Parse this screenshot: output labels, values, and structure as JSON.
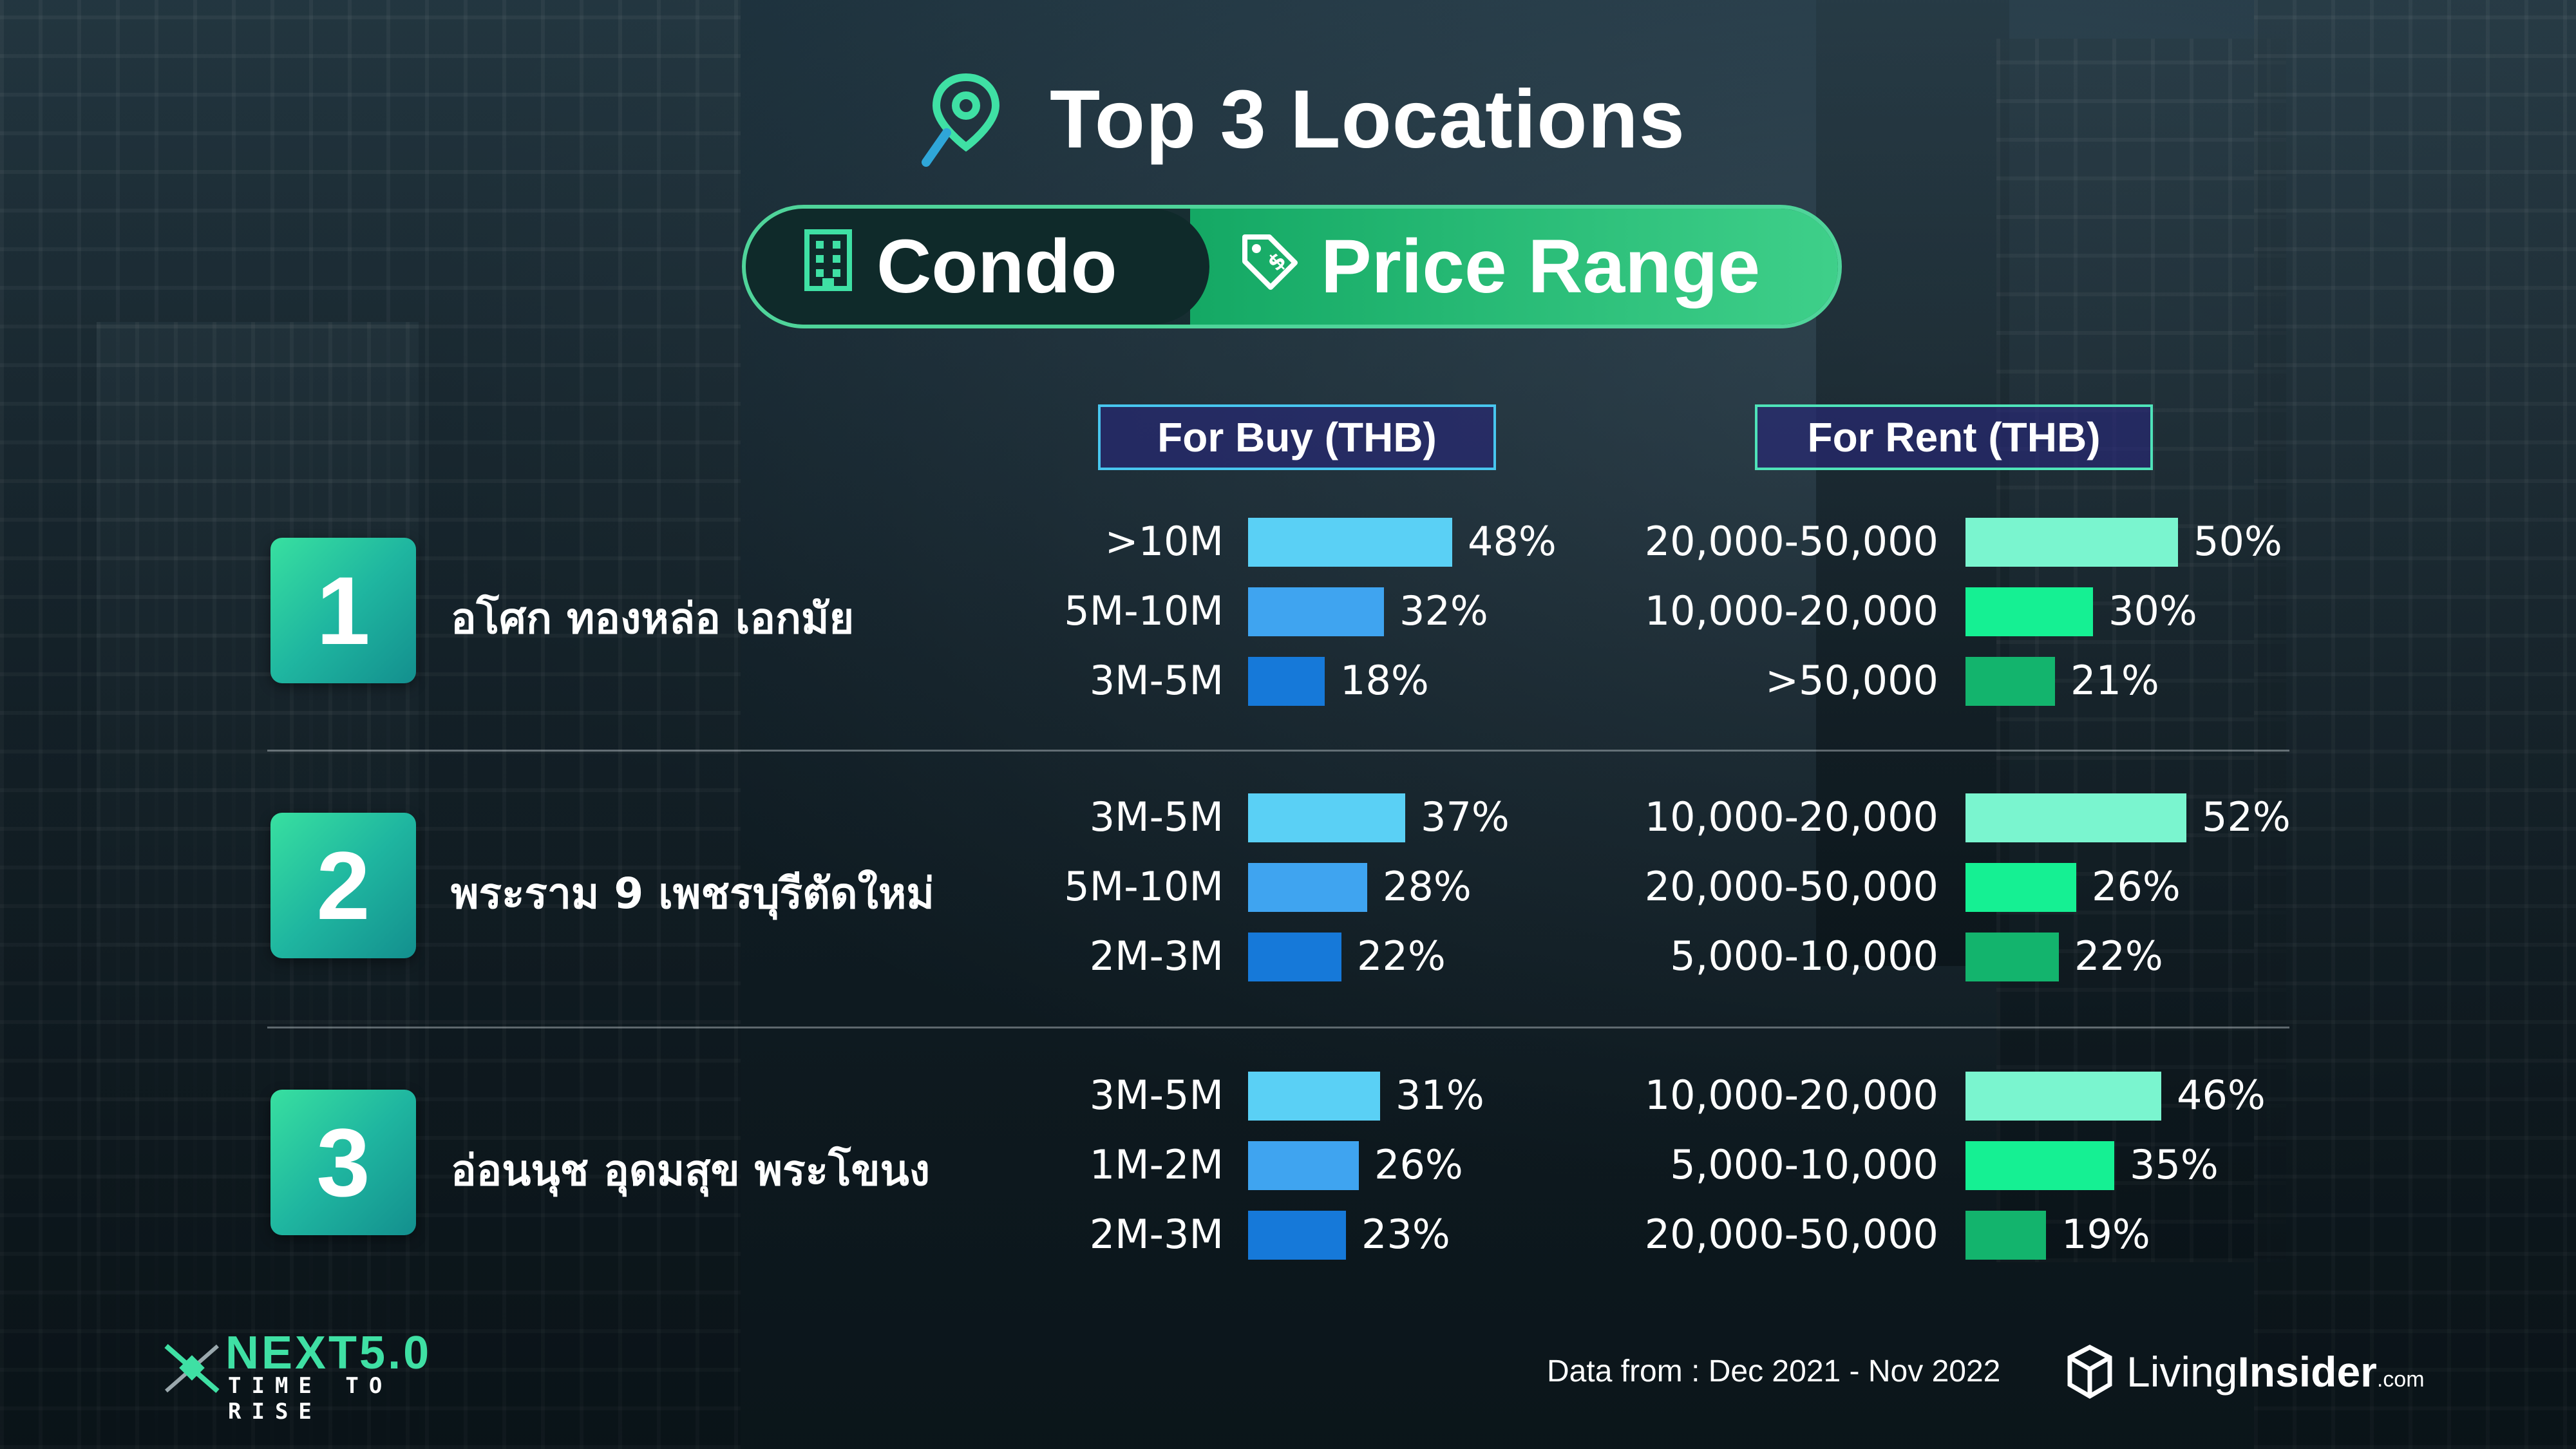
{
  "title": "Top 3 Locations",
  "pill": {
    "left_label": "Condo",
    "right_label": "Price Range",
    "left_icon": "building-icon",
    "right_icon": "price-tag-icon"
  },
  "columns": {
    "buy_header": "For Buy (THB)",
    "rent_header": "For Rent (THB)"
  },
  "colors": {
    "buy_bars": [
      "#5ad0f5",
      "#3fa4f0",
      "#1679d9"
    ],
    "rent_bars": [
      "#7af5cf",
      "#15f093",
      "#13b46d"
    ],
    "accent": "#3fe0a4"
  },
  "chart_data": {
    "type": "bar",
    "orientation": "horizontal",
    "title": "Top 3 Locations",
    "locations": [
      {
        "rank": "1",
        "name": "อโศก ทองหล่อ เอกมัย",
        "buy": [
          {
            "range": ">10M",
            "value": 48,
            "label": "48%"
          },
          {
            "range": "5M-10M",
            "value": 32,
            "label": "32%"
          },
          {
            "range": "3M-5M",
            "value": 18,
            "label": "18%"
          }
        ],
        "rent": [
          {
            "range": "20,000-50,000",
            "value": 50,
            "label": "50%"
          },
          {
            "range": "10,000-20,000",
            "value": 30,
            "label": "30%"
          },
          {
            "range": ">50,000",
            "value": 21,
            "label": "21%"
          }
        ]
      },
      {
        "rank": "2",
        "name": "พระราม 9 เพชรบุรีตัดใหม่",
        "buy": [
          {
            "range": "3M-5M",
            "value": 37,
            "label": "37%"
          },
          {
            "range": "5M-10M",
            "value": 28,
            "label": "28%"
          },
          {
            "range": "2M-3M",
            "value": 22,
            "label": "22%"
          }
        ],
        "rent": [
          {
            "range": "10,000-20,000",
            "value": 52,
            "label": "52%"
          },
          {
            "range": "20,000-50,000",
            "value": 26,
            "label": "26%"
          },
          {
            "range": "5,000-10,000",
            "value": 22,
            "label": "22%"
          }
        ]
      },
      {
        "rank": "3",
        "name": "อ่อนนุช อุดมสุข พระโขนง",
        "buy": [
          {
            "range": "3M-5M",
            "value": 31,
            "label": "31%"
          },
          {
            "range": "1M-2M",
            "value": 26,
            "label": "26%"
          },
          {
            "range": "2M-3M",
            "value": 23,
            "label": "23%"
          }
        ],
        "rent": [
          {
            "range": "10,000-20,000",
            "value": 46,
            "label": "46%"
          },
          {
            "range": "5,000-10,000",
            "value": 35,
            "label": "35%"
          },
          {
            "range": "20,000-50,000",
            "value": 19,
            "label": "19%"
          }
        ]
      }
    ]
  },
  "footer": {
    "logo_title": "NEXT5.0",
    "logo_subtitle": "TIME TO RISE",
    "source": "Data from : Dec 2021 - Nov 2022",
    "brand_prefix": "Living",
    "brand_bold": "Insider",
    "brand_suffix": ".com"
  }
}
